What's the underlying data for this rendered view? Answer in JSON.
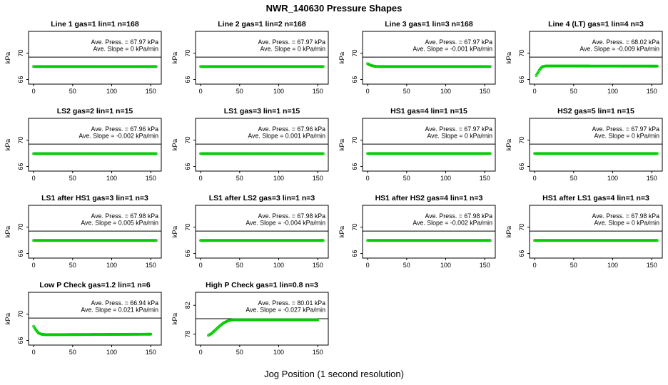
{
  "figure_title": "NWR_140630  Pressure Shapes",
  "x_axis_label": "Jog Position (1 second resolution)",
  "y_axis_label": "kPa",
  "colors": {
    "points": "#00CC00",
    "ref_line": "#000000",
    "axis": "#000000"
  },
  "marker": {
    "shape": "circle-open",
    "radius": 1.5
  },
  "chart_data": [
    {
      "type": "scatter",
      "title": "Line 1 gas=1 lin=1 n=168",
      "ave_press_text": "Ave. Press. = 67.97 kPa",
      "ave_slope_text": "Ave. Slope = 0 kPa/min",
      "ave_press_kpa": 67.97,
      "ave_slope_kpa_per_min": 0,
      "xticks": [
        0,
        50,
        100,
        150
      ],
      "yticks": [
        66,
        70
      ],
      "xlim": [
        -6.5,
        163.5
      ],
      "ylim": [
        65.3,
        73.3
      ],
      "ref_line_y": 69.4,
      "x_range": [
        0,
        157
      ],
      "profile": [
        [
          0,
          67.97
        ],
        [
          157,
          67.97
        ]
      ]
    },
    {
      "type": "scatter",
      "title": "Line 2 gas=1 lin=2 n=168",
      "ave_press_text": "Ave. Press. = 67.97 kPa",
      "ave_slope_text": "Ave. Slope = 0 kPa/min",
      "ave_press_kpa": 67.97,
      "ave_slope_kpa_per_min": 0,
      "xticks": [
        0,
        50,
        100,
        150
      ],
      "yticks": [
        66,
        70
      ],
      "xlim": [
        -6.5,
        163.5
      ],
      "ylim": [
        65.3,
        73.3
      ],
      "ref_line_y": 69.4,
      "x_range": [
        0,
        157
      ],
      "profile": [
        [
          0,
          67.97
        ],
        [
          157,
          67.97
        ]
      ]
    },
    {
      "type": "scatter",
      "title": "Line 3 gas=1 lin=3 n=168",
      "ave_press_text": "Ave. Press. = 67.97 kPa",
      "ave_slope_text": "Ave. Slope = -0.001 kPa/min",
      "ave_press_kpa": 67.97,
      "ave_slope_kpa_per_min": -0.001,
      "xticks": [
        0,
        50,
        100,
        150
      ],
      "yticks": [
        66,
        70
      ],
      "xlim": [
        -6.5,
        163.5
      ],
      "ylim": [
        65.3,
        73.3
      ],
      "ref_line_y": 69.4,
      "x_range": [
        0,
        157
      ],
      "profile": [
        [
          0,
          68.4
        ],
        [
          4,
          68.15
        ],
        [
          9,
          68.0
        ],
        [
          14,
          67.97
        ],
        [
          157,
          67.97
        ]
      ]
    },
    {
      "type": "scatter",
      "title": "Line 4 (LT) gas=1 lin=4 n=3",
      "ave_press_text": "Ave. Press. = 68.02 kPa",
      "ave_slope_text": "Ave. Slope = -0.009 kPa/min",
      "ave_press_kpa": 68.02,
      "ave_slope_kpa_per_min": -0.009,
      "xticks": [
        0,
        50,
        100,
        150
      ],
      "yticks": [
        66,
        70
      ],
      "xlim": [
        -6.5,
        163.5
      ],
      "ylim": [
        65.3,
        73.3
      ],
      "ref_line_y": 69.4,
      "x_range": [
        2,
        157
      ],
      "profile": [
        [
          2,
          66.6
        ],
        [
          4,
          67.0
        ],
        [
          7,
          67.6
        ],
        [
          10,
          67.95
        ],
        [
          14,
          68.05
        ],
        [
          157,
          68.03
        ]
      ]
    },
    {
      "type": "scatter",
      "title": "LS2 gas=2 lin=1 n=15",
      "ave_press_text": "Ave. Press. = 67.96 kPa",
      "ave_slope_text": "Ave. Slope = -0.002 kPa/min",
      "ave_press_kpa": 67.96,
      "ave_slope_kpa_per_min": -0.002,
      "xticks": [
        0,
        50,
        100,
        150
      ],
      "yticks": [
        66,
        70
      ],
      "xlim": [
        -6.5,
        163.5
      ],
      "ylim": [
        65.3,
        73.3
      ],
      "ref_line_y": 69.4,
      "x_range": [
        0,
        157
      ],
      "profile": [
        [
          0,
          67.96
        ],
        [
          157,
          67.96
        ]
      ]
    },
    {
      "type": "scatter",
      "title": "LS1 gas=3 lin=1 n=15",
      "ave_press_text": "Ave. Press. = 67.96 kPa",
      "ave_slope_text": "Ave. Slope = 0.001 kPa/min",
      "ave_press_kpa": 67.96,
      "ave_slope_kpa_per_min": 0.001,
      "xticks": [
        0,
        50,
        100,
        150
      ],
      "yticks": [
        66,
        70
      ],
      "xlim": [
        -6.5,
        163.5
      ],
      "ylim": [
        65.3,
        73.3
      ],
      "ref_line_y": 69.4,
      "x_range": [
        0,
        157
      ],
      "profile": [
        [
          0,
          67.96
        ],
        [
          157,
          67.96
        ]
      ]
    },
    {
      "type": "scatter",
      "title": "HS1 gas=4 lin=1 n=15",
      "ave_press_text": "Ave. Press. = 67.97 kPa",
      "ave_slope_text": "Ave. Slope = 0 kPa/min",
      "ave_press_kpa": 67.97,
      "ave_slope_kpa_per_min": 0,
      "xticks": [
        0,
        50,
        100,
        150
      ],
      "yticks": [
        66,
        70
      ],
      "xlim": [
        -6.5,
        163.5
      ],
      "ylim": [
        65.3,
        73.3
      ],
      "ref_line_y": 69.4,
      "x_range": [
        0,
        157
      ],
      "profile": [
        [
          0,
          67.97
        ],
        [
          157,
          67.97
        ]
      ]
    },
    {
      "type": "scatter",
      "title": "HS2 gas=5 lin=1 n=15",
      "ave_press_text": "Ave. Press. = 67.97 kPa",
      "ave_slope_text": "Ave. Slope = 0 kPa/min",
      "ave_press_kpa": 67.97,
      "ave_slope_kpa_per_min": 0,
      "xticks": [
        0,
        50,
        100,
        150
      ],
      "yticks": [
        66,
        70
      ],
      "xlim": [
        -6.5,
        163.5
      ],
      "ylim": [
        65.3,
        73.3
      ],
      "ref_line_y": 69.4,
      "x_range": [
        0,
        157
      ],
      "profile": [
        [
          0,
          67.97
        ],
        [
          157,
          67.97
        ]
      ]
    },
    {
      "type": "scatter",
      "title": "LS1 after HS1 gas=3 lin=1 n=3",
      "ave_press_text": "Ave. Press. = 67.98 kPa",
      "ave_slope_text": "Ave. Slope = 0.005 kPa/min",
      "ave_press_kpa": 67.98,
      "ave_slope_kpa_per_min": 0.005,
      "xticks": [
        0,
        50,
        100,
        150
      ],
      "yticks": [
        66,
        70
      ],
      "xlim": [
        -6.5,
        163.5
      ],
      "ylim": [
        65.3,
        73.3
      ],
      "ref_line_y": 69.4,
      "x_range": [
        0,
        157
      ],
      "profile": [
        [
          0,
          67.98
        ],
        [
          157,
          67.98
        ]
      ]
    },
    {
      "type": "scatter",
      "title": "LS1 after LS2 gas=3 lin=1 n=3",
      "ave_press_text": "Ave. Press. = 67.98 kPa",
      "ave_slope_text": "Ave. Slope = -0.004 kPa/min",
      "ave_press_kpa": 67.98,
      "ave_slope_kpa_per_min": -0.004,
      "xticks": [
        0,
        50,
        100,
        150
      ],
      "yticks": [
        66,
        70
      ],
      "xlim": [
        -6.5,
        163.5
      ],
      "ylim": [
        65.3,
        73.3
      ],
      "ref_line_y": 69.4,
      "x_range": [
        0,
        157
      ],
      "profile": [
        [
          0,
          67.98
        ],
        [
          157,
          67.98
        ]
      ]
    },
    {
      "type": "scatter",
      "title": "HS1 after HS2 gas=4 lin=1 n=3",
      "ave_press_text": "Ave. Press. = 67.98 kPa",
      "ave_slope_text": "Ave. Slope = -0.002 kPa/min",
      "ave_press_kpa": 67.98,
      "ave_slope_kpa_per_min": -0.002,
      "xticks": [
        0,
        50,
        100,
        150
      ],
      "yticks": [
        66,
        70
      ],
      "xlim": [
        -6.5,
        163.5
      ],
      "ylim": [
        65.3,
        73.3
      ],
      "ref_line_y": 69.4,
      "x_range": [
        0,
        157
      ],
      "profile": [
        [
          0,
          67.98
        ],
        [
          157,
          67.98
        ]
      ]
    },
    {
      "type": "scatter",
      "title": "HS1 after LS1 gas=4 lin=1 n=3",
      "ave_press_text": "Ave. Press. = 67.98 kPa",
      "ave_slope_text": "Ave. Slope = 0 kPa/min",
      "ave_press_kpa": 67.98,
      "ave_slope_kpa_per_min": 0,
      "xticks": [
        0,
        50,
        100,
        150
      ],
      "yticks": [
        66,
        70
      ],
      "xlim": [
        -6.5,
        163.5
      ],
      "ylim": [
        65.3,
        73.3
      ],
      "ref_line_y": 69.4,
      "x_range": [
        0,
        157
      ],
      "profile": [
        [
          0,
          67.98
        ],
        [
          157,
          67.98
        ]
      ]
    },
    {
      "type": "scatter",
      "title": "Low P Check gas=1.2 lin=1 n=6",
      "ave_press_text": "Ave. Press. = 66.94 kPa",
      "ave_slope_text": "Ave. Slope = 0.021 kPa/min",
      "ave_press_kpa": 66.94,
      "ave_slope_kpa_per_min": 0.021,
      "xticks": [
        0,
        50,
        100,
        150
      ],
      "yticks": [
        66,
        70
      ],
      "xlim": [
        -6.5,
        163.5
      ],
      "ylim": [
        65.3,
        73.3
      ],
      "ref_line_y": 69.4,
      "x_range": [
        0,
        150
      ],
      "profile": [
        [
          0,
          68.15
        ],
        [
          3,
          67.6
        ],
        [
          6,
          67.15
        ],
        [
          10,
          66.95
        ],
        [
          15,
          66.88
        ],
        [
          60,
          66.9
        ],
        [
          150,
          66.95
        ]
      ]
    },
    {
      "type": "scatter",
      "title": "High P Check gas=1 lin=0.8 n=3",
      "ave_press_text": "Ave. Press. = 80.01 kPa",
      "ave_slope_text": "Ave. Slope = -0.027 kPa/min",
      "ave_press_kpa": 80.01,
      "ave_slope_kpa_per_min": -0.027,
      "xticks": [
        0,
        50,
        100,
        150
      ],
      "yticks": [
        78,
        82
      ],
      "xlim": [
        -6.5,
        163.5
      ],
      "ylim": [
        76.5,
        83.8
      ],
      "ref_line_y": 80.15,
      "x_range": [
        10,
        150
      ],
      "profile": [
        [
          10,
          77.85
        ],
        [
          14,
          78.1
        ],
        [
          18,
          78.5
        ],
        [
          24,
          79.1
        ],
        [
          30,
          79.6
        ],
        [
          36,
          79.9
        ],
        [
          42,
          80.0
        ],
        [
          150,
          80.0
        ]
      ]
    }
  ]
}
